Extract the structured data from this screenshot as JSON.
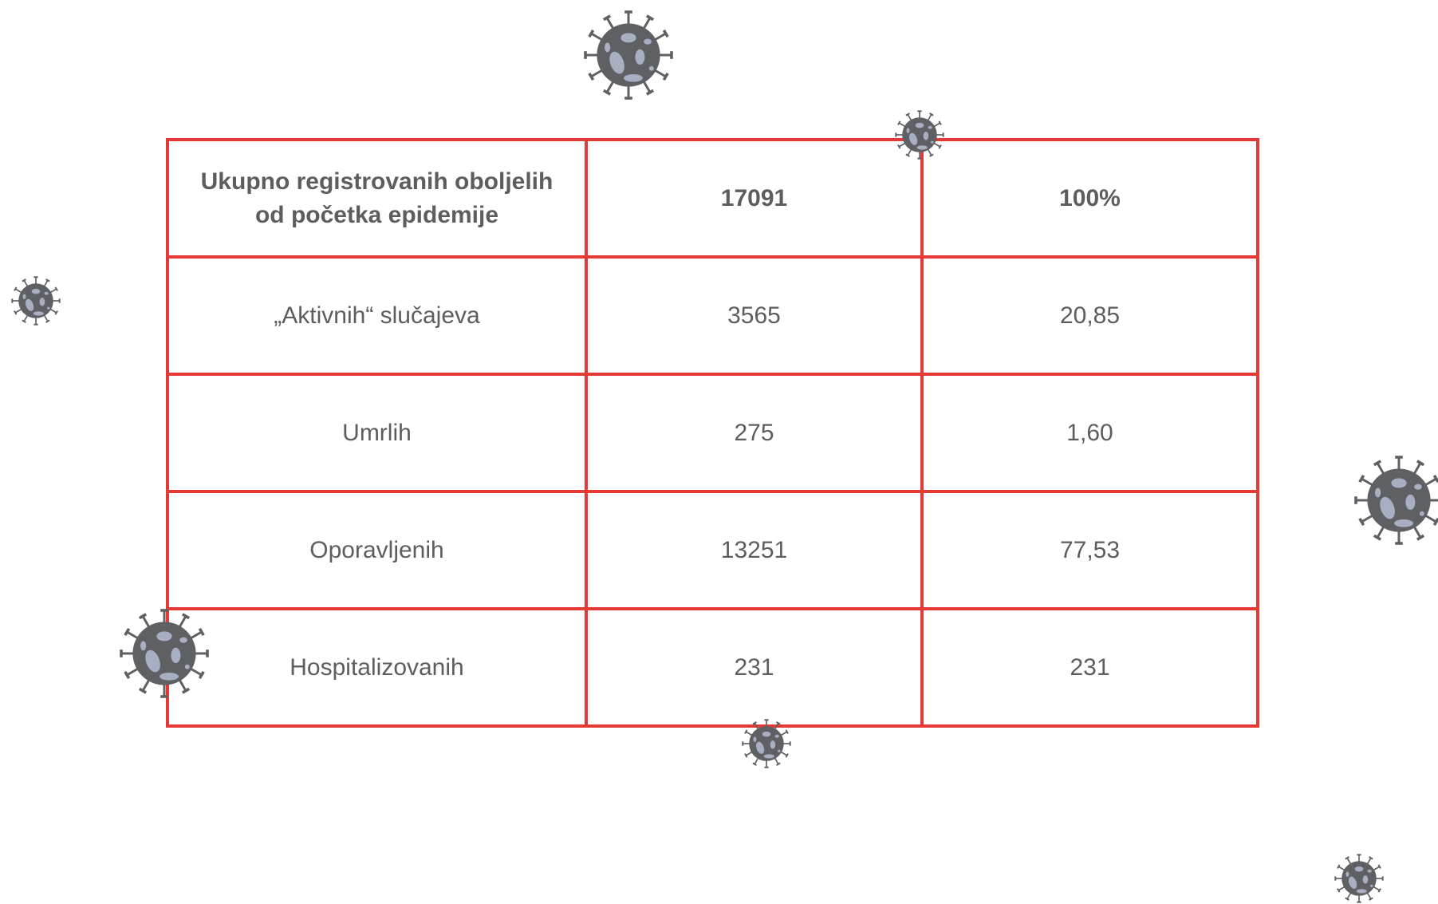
{
  "table": {
    "rows": [
      [
        "Ukupno registrovanih oboljelih od početka epidemije",
        "17091",
        "100%"
      ],
      [
        "„Aktivnih“ slučajeva",
        "3565",
        "20,85"
      ],
      [
        "Umrlih",
        "275",
        "1,60"
      ],
      [
        "Oporavljenih",
        "13251",
        "77,53"
      ],
      [
        "Hospitalizovanih",
        "231",
        "231"
      ]
    ]
  }
}
